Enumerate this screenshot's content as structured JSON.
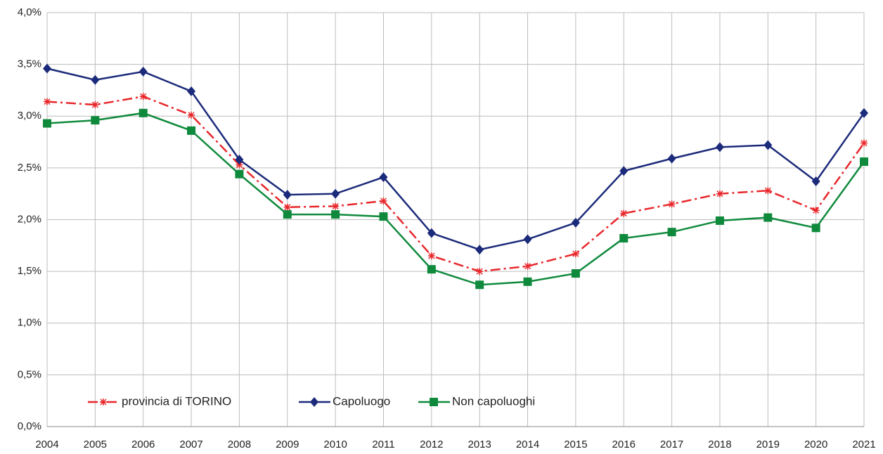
{
  "chart_data": {
    "type": "line",
    "x": [
      2004,
      2005,
      2006,
      2007,
      2008,
      2009,
      2010,
      2011,
      2012,
      2013,
      2014,
      2015,
      2016,
      2017,
      2018,
      2019,
      2020,
      2021
    ],
    "xlim": [
      2004,
      2021
    ],
    "xticks": [
      2004,
      2005,
      2006,
      2007,
      2008,
      2009,
      2010,
      2011,
      2012,
      2013,
      2014,
      2015,
      2016,
      2017,
      2018,
      2019,
      2020,
      2021
    ],
    "ylim": [
      0,
      4
    ],
    "yticks": [
      {
        "value": 0,
        "label": "0,0%"
      },
      {
        "value": 0.5,
        "label": "0,5%"
      },
      {
        "value": 1,
        "label": "1,0%"
      },
      {
        "value": 1.5,
        "label": "1,5%"
      },
      {
        "value": 2,
        "label": "2,0%"
      },
      {
        "value": 2.5,
        "label": "2,5%"
      },
      {
        "value": 3,
        "label": "3,0%"
      },
      {
        "value": 3.5,
        "label": "3,5%"
      },
      {
        "value": 4,
        "label": "4,0%"
      }
    ],
    "grid": true,
    "legend": "bottom-left",
    "series": [
      {
        "name": "provincia di TORINO",
        "color": "#e8262a",
        "marker": "star",
        "dash": "dash-dot",
        "values": [
          3.14,
          3.11,
          3.19,
          3.01,
          2.53,
          2.12,
          2.13,
          2.18,
          1.65,
          1.5,
          1.55,
          1.67,
          2.06,
          2.15,
          2.25,
          2.28,
          2.09,
          2.74
        ]
      },
      {
        "name": "Capoluogo",
        "color": "#1b2a7a",
        "marker": "diamond",
        "dash": "solid",
        "values": [
          3.46,
          3.35,
          3.43,
          3.24,
          2.58,
          2.24,
          2.25,
          2.41,
          1.87,
          1.71,
          1.81,
          1.97,
          2.47,
          2.59,
          2.7,
          2.72,
          2.37,
          3.03
        ]
      },
      {
        "name": "Non capoluoghi",
        "color": "#0f8a3c",
        "marker": "square",
        "dash": "solid",
        "values": [
          2.93,
          2.96,
          3.03,
          2.86,
          2.44,
          2.05,
          2.05,
          2.03,
          1.52,
          1.37,
          1.4,
          1.48,
          1.82,
          1.88,
          1.99,
          2.02,
          1.92,
          2.56
        ]
      }
    ]
  }
}
